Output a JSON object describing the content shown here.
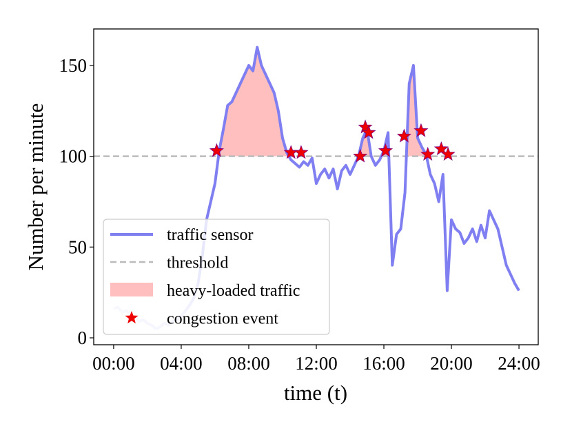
{
  "chart_data": {
    "type": "line",
    "xlabel": "time (t)",
    "ylabel": "Number per minute",
    "xlim": [
      -1.18,
      25.14
    ],
    "ylim": [
      -3.8,
      170.1
    ],
    "xticks": [
      {
        "value": 0,
        "label": "00:00"
      },
      {
        "value": 4,
        "label": "04:00"
      },
      {
        "value": 8,
        "label": "08:00"
      },
      {
        "value": 12,
        "label": "12:00"
      },
      {
        "value": 16,
        "label": "16:00"
      },
      {
        "value": 20,
        "label": "20:00"
      },
      {
        "value": 24,
        "label": "24:00"
      }
    ],
    "yticks": [
      0,
      50,
      100,
      150
    ],
    "x": [
      0,
      0.25,
      0.5,
      0.75,
      1,
      1.25,
      1.5,
      1.75,
      2,
      2.25,
      2.5,
      2.75,
      3,
      3.25,
      3.5,
      3.75,
      4,
      4.25,
      4.5,
      4.75,
      5,
      5.25,
      5.5,
      5.75,
      6,
      6.25,
      6.5,
      6.75,
      7,
      7.25,
      7.5,
      7.75,
      8,
      8.25,
      8.5,
      8.75,
      9,
      9.25,
      9.5,
      9.75,
      10,
      10.25,
      10.5,
      10.75,
      11,
      11.25,
      11.5,
      11.75,
      12,
      12.25,
      12.5,
      12.75,
      13,
      13.25,
      13.5,
      13.75,
      14,
      14.25,
      14.5,
      14.75,
      15,
      15.25,
      15.5,
      15.75,
      16,
      16.25,
      16.5,
      16.75,
      17,
      17.25,
      17.5,
      17.75,
      18,
      18.25,
      18.5,
      18.75,
      19,
      19.25,
      19.5,
      19.75,
      20,
      20.25,
      20.5,
      20.75,
      21,
      21.25,
      21.5,
      21.75,
      22,
      22.25,
      22.5,
      22.75,
      23,
      23.25,
      23.5,
      23.75,
      24
    ],
    "series": [
      {
        "name": "traffic sensor",
        "color": "#7f7ff2",
        "values": [
          16,
          17,
          14,
          15,
          13,
          12,
          9,
          10,
          8,
          7,
          5,
          6,
          8,
          7,
          9,
          10,
          12,
          15,
          18,
          22,
          30,
          45,
          65,
          75,
          85,
          103,
          115,
          128,
          130,
          135,
          140,
          145,
          150,
          147,
          160,
          150,
          145,
          140,
          135,
          125,
          110,
          102,
          98,
          96,
          94,
          97,
          95,
          99,
          85,
          90,
          93,
          88,
          93,
          82,
          92,
          95,
          90,
          95,
          100,
          110,
          115,
          100,
          95,
          98,
          103,
          113,
          40,
          57,
          60,
          80,
          140,
          150,
          110,
          105,
          101,
          90,
          85,
          75,
          90,
          26,
          65,
          60,
          58,
          52,
          55,
          60,
          53,
          62,
          55,
          70,
          65,
          60,
          50,
          40,
          35,
          30,
          26
        ]
      }
    ],
    "threshold": {
      "name": "threshold",
      "value": 100,
      "color": "#bbbbbb"
    },
    "fill": {
      "name": "heavy-loaded traffic",
      "color": "#ffbfbf"
    },
    "events": {
      "name": "congestion event",
      "color": "#ee0000",
      "x": [
        6.1,
        10.5,
        11.1,
        14.6,
        14.9,
        15.1,
        16.1,
        17.2,
        18.2,
        18.6,
        19.4,
        19.8
      ],
      "values": [
        103,
        102,
        102,
        100,
        116,
        113,
        103,
        111,
        114,
        101,
        104,
        101
      ]
    }
  }
}
